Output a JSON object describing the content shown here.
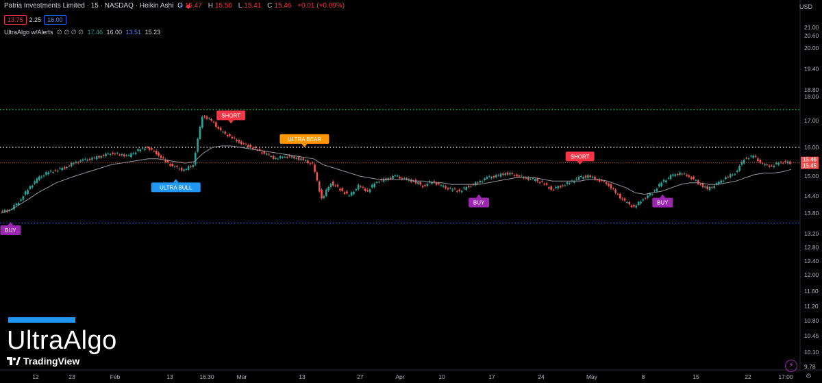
{
  "header": {
    "symbol": "Patria Investments Limited · 15 · NASDAQ · Heikin Ashi",
    "ohlc": [
      {
        "k": "O",
        "v": "15.47"
      },
      {
        "k": "H",
        "v": "15.50"
      },
      {
        "k": "L",
        "v": "15.41"
      },
      {
        "k": "C",
        "v": "15.46"
      }
    ],
    "change": "+0.01 (+0.09%)"
  },
  "price_row": {
    "bid": "13.75",
    "spread": "2.25",
    "ask": "16.00"
  },
  "indicator": {
    "name": "UltraAlgo w/Alerts",
    "placeholders": "∅ ∅ ∅ ∅",
    "v1": "17.46",
    "v2": "16.00",
    "v3": "13.51",
    "v4": "15.23"
  },
  "currency": "USD",
  "branding": {
    "name": "UltraAlgo",
    "platform": "TradingView"
  },
  "icons": [
    "eye-off-icon",
    "settings-icon",
    "delete-icon",
    "more-icon",
    "lightning-icon",
    "gear-icon"
  ],
  "colors": {
    "up": "#26a69a",
    "down": "#ef5350",
    "buy": "#9c27b0",
    "short": "#f23645",
    "ultra_bull": "#2196f3",
    "ultra_bear": "#ff9800",
    "upper_level": "#00e676",
    "lower_level": "#2962ff"
  },
  "chart_data": {
    "type": "line",
    "title": "",
    "xlabel": "",
    "ylabel": "",
    "ylim": [
      9.78,
      21.3
    ],
    "y_ticks": [
      21.0,
      20.6,
      20.0,
      19.4,
      18.8,
      18.0,
      17.0,
      16.0,
      15.0,
      14.4,
      13.8,
      13.2,
      12.8,
      12.4,
      12.0,
      11.6,
      11.2,
      10.8,
      10.45,
      10.1,
      9.78
    ],
    "y_tick_labels": [
      "21.00",
      "20.60",
      "20.00",
      "19.40",
      "18.80",
      "18.00",
      "17.00",
      "16.00",
      "15.00",
      "14.40",
      "13.80",
      "13.20",
      "12.80",
      "12.40",
      "12.00",
      "11.60",
      "11.20",
      "10.80",
      "10.45",
      "10.10",
      "9.78"
    ],
    "x_tick_labels": [
      "12",
      "23",
      "Feb",
      "13",
      "16:30",
      "Mar",
      "13",
      "27",
      "Apr",
      "10",
      "17",
      "24",
      "May",
      "8",
      "15",
      "22",
      "17:00"
    ],
    "series": [
      {
        "values": [
          13.85,
          13.9,
          14.2,
          14.6,
          14.9,
          15.1,
          15.2,
          15.3,
          15.45,
          15.55,
          15.6,
          15.7,
          15.8,
          15.75,
          15.7,
          15.9,
          16.0,
          15.8,
          15.5,
          15.3,
          15.2,
          15.4,
          17.2,
          17.0,
          16.6,
          16.4,
          16.2,
          16.05,
          15.9,
          15.75,
          15.6,
          15.7,
          15.65,
          15.55,
          15.4,
          14.3,
          14.8,
          14.6,
          14.4,
          14.7,
          14.55,
          14.85,
          14.9,
          15.0,
          14.9,
          14.85,
          14.7,
          14.85,
          14.7,
          14.6,
          14.55,
          14.7,
          14.8,
          14.95,
          15.0,
          15.1,
          15.05,
          14.95,
          14.9,
          14.8,
          14.6,
          14.7,
          14.8,
          14.95,
          15.0,
          14.9,
          14.8,
          14.5,
          14.2,
          14.0,
          14.3,
          14.5,
          14.8,
          15.0,
          15.1,
          15.0,
          14.8,
          14.6,
          14.75,
          14.95,
          15.1,
          15.6,
          15.7,
          15.4,
          15.35,
          15.5,
          15.46
        ]
      },
      {
        "values": [
          13.8,
          13.9,
          14.1,
          14.3,
          14.5,
          14.65,
          14.8,
          14.9,
          15.0,
          15.1,
          15.2,
          15.3,
          15.4,
          15.45,
          15.5,
          15.55,
          15.6,
          15.6,
          15.55,
          15.5,
          15.45,
          15.5,
          15.8,
          16.0,
          16.05,
          16.05,
          16.0,
          15.95,
          15.9,
          15.85,
          15.8,
          15.75,
          15.7,
          15.65,
          15.6,
          15.4,
          15.3,
          15.2,
          15.1,
          15.0,
          14.95,
          14.9,
          14.9,
          14.9,
          14.9,
          14.85,
          14.85,
          14.8,
          14.8,
          14.75,
          14.75,
          14.75,
          14.75,
          14.8,
          14.85,
          14.9,
          14.95,
          14.95,
          14.95,
          14.9,
          14.85,
          14.85,
          14.85,
          14.85,
          14.9,
          14.9,
          14.85,
          14.75,
          14.65,
          14.5,
          14.45,
          14.5,
          14.55,
          14.65,
          14.75,
          14.8,
          14.8,
          14.75,
          14.75,
          14.8,
          14.85,
          14.95,
          15.05,
          15.1,
          15.1,
          15.15,
          15.23
        ]
      }
    ],
    "levels": [
      {
        "value": 17.46,
        "style": "dotted",
        "color": "#00e676"
      },
      {
        "value": 16.0,
        "style": "dotted",
        "color": "#ffffff"
      },
      {
        "value": 13.51,
        "style": "dotted",
        "color": "#2962ff"
      }
    ],
    "current_price": {
      "value": 15.46,
      "label": "15.46",
      "label2": "15.45"
    },
    "signals": [
      {
        "label": "BUY",
        "index": 1,
        "pos": "below",
        "color": "#9c27b0"
      },
      {
        "label": "ULTRA BULL",
        "index": 19,
        "pos": "below",
        "color": "#2196f3"
      },
      {
        "label": "SHORT",
        "index": 25,
        "pos": "above",
        "color": "#f23645"
      },
      {
        "label": "ULTRA BEAR",
        "index": 33,
        "pos": "above",
        "color": "#ff9800"
      },
      {
        "label": "BUY",
        "index": 52,
        "pos": "below",
        "color": "#9c27b0"
      },
      {
        "label": "SHORT",
        "index": 63,
        "pos": "above",
        "color": "#f23645"
      },
      {
        "label": "BUY",
        "index": 72,
        "pos": "below",
        "color": "#9c27b0"
      }
    ],
    "grid": false,
    "legend": "none"
  }
}
